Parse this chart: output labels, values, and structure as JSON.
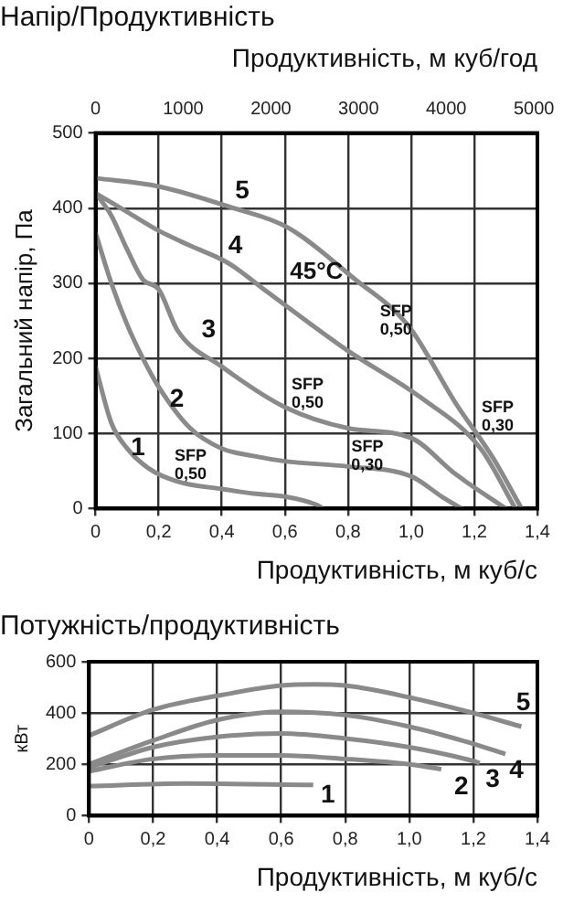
{
  "chart_data": [
    {
      "type": "line",
      "title": "Напір/Продуктивність",
      "xlabel": "Продуктивність, м куб/с",
      "ylabel": "Загальний напір, Па",
      "x2label": "Продуктивність, м куб/год",
      "xlim": [
        0,
        1.4
      ],
      "xticks": [
        0,
        {
          "value": 0.2,
          "label": "0,2"
        },
        {
          "value": 0.4,
          "label": "0,4"
        },
        {
          "value": 0.6,
          "label": "0,6"
        },
        {
          "value": 0.8,
          "label": "0,8"
        },
        {
          "value": 1.0,
          "label": "1,0"
        },
        {
          "value": 1.2,
          "label": "1,2"
        },
        {
          "value": 1.4,
          "label": "1,4"
        }
      ],
      "x2lim": [
        0,
        5040
      ],
      "x2ticks": [
        0,
        1000,
        2000,
        3000,
        4000,
        5000
      ],
      "ylim": [
        0,
        500
      ],
      "yticks": [
        0,
        100,
        200,
        300,
        400,
        500
      ],
      "grid": true,
      "legend": false,
      "marker": "none",
      "line_style": "solid",
      "series": [
        {
          "name": "1",
          "color": "#8a8a8a",
          "x": [
            0,
            0.05,
            0.1,
            0.17,
            0.26,
            0.4,
            0.5,
            0.6,
            0.7,
            0.72
          ],
          "values": [
            189,
            114,
            80,
            53,
            36,
            26,
            20,
            16,
            5,
            0
          ]
        },
        {
          "name": "2",
          "color": "#8a8a8a",
          "x": [
            0,
            0.05,
            0.1,
            0.15,
            0.2,
            0.3,
            0.4,
            0.5,
            0.6,
            0.8,
            1.0,
            1.1,
            1.16
          ],
          "values": [
            367,
            300,
            245,
            200,
            162,
            107,
            80,
            70,
            63,
            56,
            43,
            15,
            0
          ]
        },
        {
          "name": "3",
          "color": "#8a8a8a",
          "x": [
            0,
            0.05,
            0.1,
            0.15,
            0.2,
            0.26,
            0.4,
            0.6,
            0.8,
            1.0,
            1.14,
            1.3
          ],
          "values": [
            420,
            390,
            345,
            305,
            292,
            237,
            189,
            135,
            107,
            94,
            46,
            0
          ]
        },
        {
          "name": "4",
          "color": "#8a8a8a",
          "x": [
            0,
            0.1,
            0.2,
            0.3,
            0.42,
            0.53,
            0.8,
            1.03,
            1.22,
            1.33
          ],
          "values": [
            420,
            395,
            370,
            350,
            327,
            293,
            210,
            148,
            80,
            0
          ]
        },
        {
          "name": "5",
          "color": "#8a8a8a",
          "x": [
            0,
            0.2,
            0.43,
            0.61,
            0.82,
            0.99,
            1.14,
            1.26,
            1.35
          ],
          "values": [
            440,
            429,
            401,
            374,
            306,
            244,
            141,
            67,
            0
          ]
        }
      ],
      "annotations": [
        "45°C",
        "SFP\n0,50",
        "SFP\n0,50",
        "SFP\n0,30",
        "SFP\n0,50",
        "SFP\n0,30"
      ]
    },
    {
      "type": "line",
      "title": "Потужність/продуктивність",
      "xlabel": "Продуктивність, м куб/с",
      "ylabel": "кВт",
      "xlim": [
        0,
        1.4
      ],
      "xticks": [
        0,
        {
          "value": 0.2,
          "label": "0,2"
        },
        {
          "value": 0.4,
          "label": "0,4"
        },
        {
          "value": 0.6,
          "label": "0,6"
        },
        {
          "value": 0.8,
          "label": "0,8"
        },
        {
          "value": 1.0,
          "label": "1,0"
        },
        {
          "value": 1.2,
          "label": "1,2"
        },
        {
          "value": 1.4,
          "label": "1,4"
        }
      ],
      "ylim": [
        0,
        600
      ],
      "yticks": [
        0,
        200,
        400,
        600
      ],
      "grid": true,
      "legend": false,
      "marker": "none",
      "line_style": "solid",
      "series": [
        {
          "name": "1",
          "color": "#8a8a8a",
          "x": [
            0,
            0.3,
            0.7
          ],
          "values": [
            115,
            125,
            120
          ]
        },
        {
          "name": "2",
          "color": "#8a8a8a",
          "x": [
            0,
            0.2,
            0.4,
            0.6,
            0.8,
            1.0,
            1.1
          ],
          "values": [
            173,
            221,
            235,
            235,
            221,
            200,
            181
          ]
        },
        {
          "name": "3",
          "color": "#8a8a8a",
          "x": [
            0,
            0.2,
            0.4,
            0.6,
            0.8,
            1.0,
            1.2,
            1.22
          ],
          "values": [
            187,
            267,
            307,
            320,
            301,
            267,
            213,
            205
          ]
        },
        {
          "name": "4",
          "color": "#8a8a8a",
          "x": [
            0,
            0.2,
            0.4,
            0.6,
            0.8,
            1.0,
            1.2,
            1.3
          ],
          "values": [
            200,
            293,
            373,
            405,
            392,
            347,
            280,
            240
          ]
        },
        {
          "name": "5",
          "color": "#8a8a8a",
          "x": [
            0,
            0.2,
            0.4,
            0.6,
            0.7,
            0.8,
            1.0,
            1.2,
            1.35
          ],
          "values": [
            312,
            413,
            467,
            507,
            512,
            507,
            461,
            400,
            347
          ]
        }
      ]
    }
  ]
}
